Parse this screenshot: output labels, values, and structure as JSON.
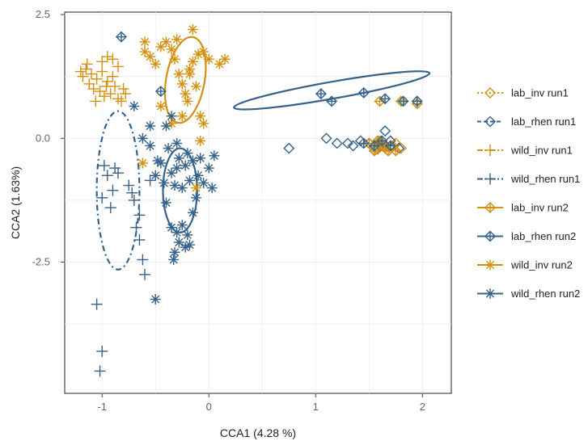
{
  "chart_data": {
    "type": "scatter",
    "xlabel": "CCA1 (4.28 %)",
    "ylabel": "CCA2 (1.63%)",
    "xlim": [
      -1.35,
      2.27
    ],
    "ylim": [
      -5.15,
      2.55
    ],
    "x_ticks": [
      -1,
      0,
      1,
      2
    ],
    "x_tick_labels": [
      "-1",
      "0",
      "1",
      "2"
    ],
    "y_ticks": [
      2.5,
      0,
      -2.5
    ],
    "y_tick_labels": [
      "2.5",
      "0.0",
      "-2.5"
    ],
    "y_minor_gridlines": [
      1.25,
      -1.25,
      -3.75
    ],
    "x_minor_gridlines": [
      -0.5,
      0.5,
      1.5
    ],
    "grid": true,
    "legend_position": "right",
    "colors": {
      "inv": "#D4900F",
      "rhen": "#34628A"
    },
    "series": [
      {
        "name": "lab_inv run1",
        "marker": "diamond",
        "color": "#D4900F",
        "line": "dotted",
        "points": [
          [
            1.5,
            -0.1
          ],
          [
            1.55,
            -0.2
          ],
          [
            1.6,
            -0.05
          ],
          [
            1.65,
            -0.15
          ],
          [
            1.7,
            -0.2
          ],
          [
            1.75,
            -0.1
          ],
          [
            1.8,
            -0.2
          ],
          [
            1.58,
            -0.22
          ],
          [
            1.62,
            -0.1
          ],
          [
            1.68,
            -0.25
          ],
          [
            1.72,
            -0.15
          ]
        ]
      },
      {
        "name": "lab_rhen run1",
        "marker": "diamond",
        "color": "#34628A",
        "line": "dashed",
        "points": [
          [
            0.75,
            -0.2
          ],
          [
            1.1,
            0.0
          ],
          [
            1.2,
            -0.1
          ],
          [
            1.35,
            -0.15
          ],
          [
            1.42,
            -0.05
          ],
          [
            1.5,
            -0.1
          ],
          [
            1.6,
            -0.15
          ],
          [
            1.65,
            0.15
          ],
          [
            1.7,
            -0.05
          ],
          [
            1.78,
            -0.2
          ],
          [
            1.3,
            -0.1
          ],
          [
            1.55,
            -0.25
          ]
        ]
      },
      {
        "name": "wild_inv run1",
        "marker": "plus",
        "color": "#D4900F",
        "line": "dashdot",
        "points": [
          [
            -1.15,
            1.4
          ],
          [
            -1.1,
            1.3
          ],
          [
            -1.12,
            1.1
          ],
          [
            -1.05,
            1.2
          ],
          [
            -1.0,
            1.35
          ],
          [
            -0.95,
            1.15
          ],
          [
            -0.9,
            1.25
          ],
          [
            -0.88,
            1.05
          ],
          [
            -1.08,
            1.0
          ],
          [
            -1.02,
            0.95
          ],
          [
            -0.98,
            0.85
          ],
          [
            -0.92,
            0.9
          ],
          [
            -0.85,
            0.8
          ],
          [
            -0.8,
            1.0
          ],
          [
            -0.78,
            0.9
          ],
          [
            -1.18,
            1.25
          ],
          [
            -1.2,
            1.35
          ],
          [
            -1.14,
            1.5
          ],
          [
            -1.0,
            1.55
          ],
          [
            -0.95,
            1.65
          ],
          [
            -0.9,
            1.6
          ],
          [
            -0.85,
            1.45
          ],
          [
            -1.06,
            0.75
          ],
          [
            -0.82,
            0.75
          ],
          [
            -0.96,
            1.05
          ]
        ]
      },
      {
        "name": "wild_rhen run1",
        "marker": "plus",
        "color": "#34628A",
        "line": "dashdot",
        "points": [
          [
            -1.05,
            -3.35
          ],
          [
            -1.0,
            -4.3
          ],
          [
            -1.02,
            -4.7
          ],
          [
            -0.95,
            -0.75
          ],
          [
            -0.98,
            -0.55
          ],
          [
            -1.0,
            -1.2
          ],
          [
            -0.9,
            -1.05
          ],
          [
            -0.92,
            -1.4
          ],
          [
            -0.85,
            -0.7
          ],
          [
            -0.75,
            -0.95
          ],
          [
            -0.72,
            -1.1
          ],
          [
            -0.7,
            -1.25
          ],
          [
            -0.65,
            -1.55
          ],
          [
            -0.68,
            -1.8
          ],
          [
            -0.65,
            -2.05
          ],
          [
            -0.62,
            -2.45
          ],
          [
            -0.6,
            -2.75
          ],
          [
            -0.55,
            -0.85
          ],
          [
            -0.88,
            -0.6
          ]
        ]
      },
      {
        "name": "lab_inv run2",
        "marker": "diamond-plus",
        "color": "#D4900F",
        "line": "solid",
        "points": [
          [
            1.6,
            0.75
          ],
          [
            1.8,
            0.75
          ],
          [
            1.95,
            0.7
          ],
          [
            1.5,
            -0.1
          ],
          [
            1.55,
            -0.25
          ],
          [
            1.6,
            -0.1
          ],
          [
            1.65,
            -0.2
          ],
          [
            1.7,
            -0.15
          ],
          [
            1.75,
            -0.25
          ],
          [
            1.62,
            -0.15
          ],
          [
            1.58,
            -0.05
          ],
          [
            1.68,
            -0.25
          ]
        ]
      },
      {
        "name": "lab_rhen run2",
        "marker": "diamond-plus",
        "color": "#34628A",
        "line": "solid",
        "points": [
          [
            -0.82,
            2.05
          ],
          [
            -0.45,
            0.95
          ],
          [
            1.05,
            0.9
          ],
          [
            1.15,
            0.75
          ],
          [
            1.45,
            0.92
          ],
          [
            1.65,
            0.8
          ],
          [
            1.82,
            0.75
          ],
          [
            1.95,
            0.75
          ],
          [
            1.45,
            -0.1
          ],
          [
            1.55,
            -0.15
          ],
          [
            1.62,
            -0.05
          ],
          [
            1.7,
            -0.15
          ]
        ]
      },
      {
        "name": "wild_inv run2",
        "marker": "asterisk",
        "color": "#D4900F",
        "line": "solid",
        "points": [
          [
            -0.6,
            1.95
          ],
          [
            -0.6,
            1.75
          ],
          [
            -0.55,
            1.65
          ],
          [
            -0.5,
            1.5
          ],
          [
            -0.45,
            1.85
          ],
          [
            -0.4,
            1.95
          ],
          [
            -0.35,
            1.8
          ],
          [
            -0.32,
            1.6
          ],
          [
            -0.28,
            1.3
          ],
          [
            -0.25,
            1.1
          ],
          [
            -0.22,
            0.9
          ],
          [
            -0.2,
            0.75
          ],
          [
            -0.18,
            1.4
          ],
          [
            -0.15,
            1.55
          ],
          [
            -0.1,
            1.7
          ],
          [
            -0.12,
            1.05
          ],
          [
            -0.08,
            0.45
          ],
          [
            -0.05,
            0.3
          ],
          [
            0.0,
            1.6
          ],
          [
            0.1,
            1.5
          ],
          [
            0.15,
            1.6
          ],
          [
            -0.3,
            2.0
          ],
          [
            -0.15,
            2.2
          ],
          [
            -0.05,
            1.75
          ],
          [
            -0.25,
            0.45
          ],
          [
            -0.08,
            -0.05
          ],
          [
            -0.12,
            -1.0
          ],
          [
            -0.45,
            0.65
          ],
          [
            -0.35,
            0.3
          ],
          [
            -0.62,
            -0.5
          ],
          [
            -0.18,
            1.3
          ]
        ]
      },
      {
        "name": "wild_rhen run2",
        "marker": "asterisk",
        "color": "#34628A",
        "line": "solid",
        "points": [
          [
            -0.7,
            0.65
          ],
          [
            -0.62,
            0.0
          ],
          [
            -0.55,
            -0.15
          ],
          [
            -0.5,
            -0.75
          ],
          [
            -0.45,
            -0.5
          ],
          [
            -0.42,
            -0.9
          ],
          [
            -0.38,
            -0.2
          ],
          [
            -0.35,
            -0.7
          ],
          [
            -0.32,
            -0.95
          ],
          [
            -0.3,
            -0.6
          ],
          [
            -0.28,
            -0.4
          ],
          [
            -0.25,
            -1.0
          ],
          [
            -0.22,
            -0.55
          ],
          [
            -0.2,
            -0.3
          ],
          [
            -0.18,
            -0.85
          ],
          [
            -0.15,
            -0.45
          ],
          [
            -0.12,
            -1.2
          ],
          [
            -0.1,
            -0.75
          ],
          [
            -0.08,
            -0.4
          ],
          [
            -0.05,
            -0.9
          ],
          [
            0.0,
            -0.6
          ],
          [
            0.05,
            -0.35
          ],
          [
            -0.3,
            -1.9
          ],
          [
            -0.28,
            -2.1
          ],
          [
            -0.25,
            -1.75
          ],
          [
            -0.22,
            -2.2
          ],
          [
            -0.2,
            -1.95
          ],
          [
            -0.18,
            -2.15
          ],
          [
            -0.32,
            -2.3
          ],
          [
            -0.35,
            -1.8
          ],
          [
            -0.33,
            -2.45
          ],
          [
            -0.5,
            -3.25
          ],
          [
            -0.48,
            -0.45
          ],
          [
            -0.4,
            0.25
          ],
          [
            -0.35,
            0.45
          ],
          [
            -0.3,
            -0.1
          ],
          [
            -0.55,
            0.25
          ],
          [
            0.03,
            -1.0
          ],
          [
            -0.15,
            -1.5
          ],
          [
            -0.4,
            -1.3
          ]
        ]
      }
    ],
    "ellipses": [
      {
        "series": "lab_rhen run2",
        "color": "#34628A",
        "style": "solid",
        "cx": 1.15,
        "cy": 0.97,
        "rx": 0.93,
        "ry": 0.17,
        "angle_deg": 10
      },
      {
        "series": "wild_inv run2",
        "color": "#D4900F",
        "style": "solid",
        "cx": -0.22,
        "cy": 1.18,
        "rx": 0.18,
        "ry": 0.88,
        "angle_deg": -10
      },
      {
        "series": "wild_rhen run2",
        "color": "#34628A",
        "style": "solid",
        "cx": -0.27,
        "cy": -1.05,
        "rx": 0.16,
        "ry": 0.85,
        "angle_deg": 0
      },
      {
        "series": "wild_rhen run1",
        "color": "#34628A",
        "style": "dashdot",
        "cx": -0.85,
        "cy": -1.05,
        "rx": 0.2,
        "ry": 1.6,
        "angle_deg": 0
      }
    ]
  }
}
